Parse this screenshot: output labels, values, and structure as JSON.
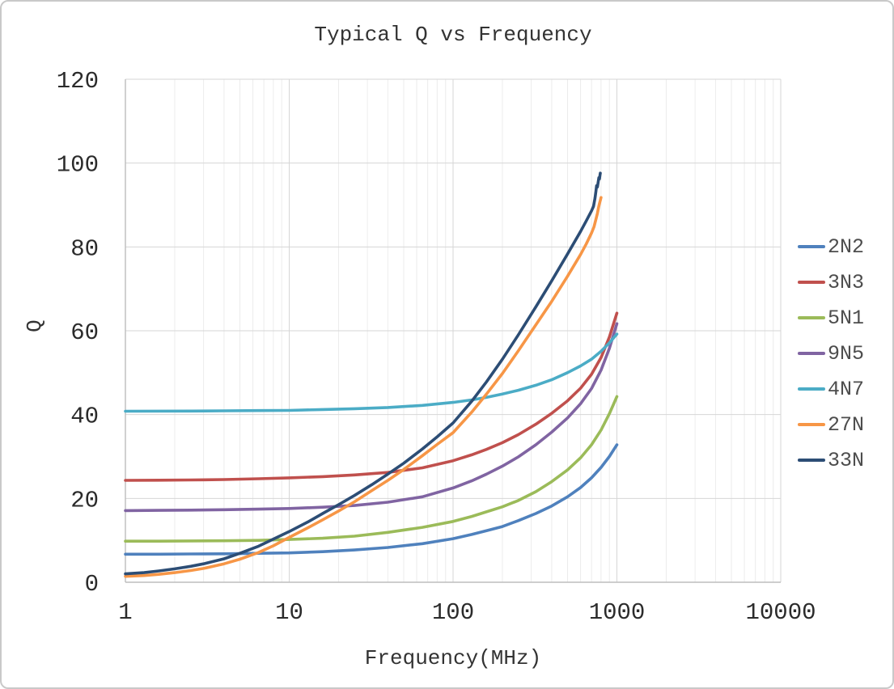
{
  "chart_data": {
    "type": "line",
    "title": "Typical Q vs Frequency",
    "xlabel": "Frequency(MHz)",
    "ylabel": "Q",
    "x_axis": {
      "scale": "log",
      "min": 1,
      "max": 10000,
      "ticks": [
        "1",
        "10",
        "100",
        "1000",
        "10000"
      ]
    },
    "y_axis": {
      "min": 0,
      "max": 120,
      "step": 20,
      "ticks": [
        "0",
        "20",
        "40",
        "60",
        "80",
        "100",
        "120"
      ]
    },
    "grid": {
      "major_color": "#d6d6d6",
      "minor_color": "#ececec",
      "axis_color": "#bdbdbd",
      "background": "#ffffff"
    },
    "legend_position": "right",
    "series": [
      {
        "name": "2N2",
        "color": "#4F81BD",
        "points": [
          [
            1,
            6.7
          ],
          [
            1.6,
            6.7
          ],
          [
            2.5,
            6.75
          ],
          [
            4,
            6.8
          ],
          [
            6.5,
            6.9
          ],
          [
            10,
            7.0
          ],
          [
            16,
            7.3
          ],
          [
            25,
            7.7
          ],
          [
            40,
            8.3
          ],
          [
            65,
            9.2
          ],
          [
            100,
            10.4
          ],
          [
            130,
            11.4
          ],
          [
            160,
            12.3
          ],
          [
            200,
            13.3
          ],
          [
            250,
            14.7
          ],
          [
            320,
            16.4
          ],
          [
            400,
            18.2
          ],
          [
            500,
            20.4
          ],
          [
            600,
            22.6
          ],
          [
            700,
            24.9
          ],
          [
            800,
            27.4
          ],
          [
            900,
            30.0
          ],
          [
            1000,
            32.8
          ]
        ]
      },
      {
        "name": "3N3",
        "color": "#C0504D",
        "points": [
          [
            1,
            24.3
          ],
          [
            1.6,
            24.35
          ],
          [
            2.5,
            24.4
          ],
          [
            4,
            24.5
          ],
          [
            6.5,
            24.7
          ],
          [
            10,
            24.9
          ],
          [
            16,
            25.2
          ],
          [
            25,
            25.6
          ],
          [
            40,
            26.2
          ],
          [
            65,
            27.3
          ],
          [
            100,
            29.0
          ],
          [
            130,
            30.4
          ],
          [
            160,
            31.7
          ],
          [
            200,
            33.3
          ],
          [
            250,
            35.2
          ],
          [
            320,
            37.7
          ],
          [
            400,
            40.3
          ],
          [
            500,
            43.3
          ],
          [
            600,
            46.3
          ],
          [
            700,
            49.6
          ],
          [
            800,
            53.6
          ],
          [
            900,
            58.5
          ],
          [
            1000,
            64.2
          ]
        ]
      },
      {
        "name": "5N1",
        "color": "#9BBB59",
        "points": [
          [
            1,
            9.8
          ],
          [
            1.6,
            9.8
          ],
          [
            2.5,
            9.85
          ],
          [
            4,
            9.9
          ],
          [
            6.5,
            10.0
          ],
          [
            10,
            10.2
          ],
          [
            16,
            10.5
          ],
          [
            25,
            11.0
          ],
          [
            40,
            11.9
          ],
          [
            65,
            13.1
          ],
          [
            100,
            14.5
          ],
          [
            130,
            15.7
          ],
          [
            160,
            16.8
          ],
          [
            200,
            18.0
          ],
          [
            250,
            19.5
          ],
          [
            320,
            21.6
          ],
          [
            400,
            24.0
          ],
          [
            500,
            26.8
          ],
          [
            600,
            29.7
          ],
          [
            700,
            32.8
          ],
          [
            800,
            36.3
          ],
          [
            900,
            40.2
          ],
          [
            1000,
            44.3
          ]
        ]
      },
      {
        "name": "9N5",
        "color": "#8064A2",
        "points": [
          [
            1,
            17.1
          ],
          [
            1.6,
            17.15
          ],
          [
            2.5,
            17.2
          ],
          [
            4,
            17.3
          ],
          [
            6.5,
            17.45
          ],
          [
            10,
            17.6
          ],
          [
            16,
            17.9
          ],
          [
            25,
            18.3
          ],
          [
            40,
            19.1
          ],
          [
            65,
            20.4
          ],
          [
            100,
            22.5
          ],
          [
            130,
            24.2
          ],
          [
            160,
            25.8
          ],
          [
            200,
            27.7
          ],
          [
            250,
            29.9
          ],
          [
            320,
            32.8
          ],
          [
            400,
            35.8
          ],
          [
            500,
            39.2
          ],
          [
            600,
            42.6
          ],
          [
            700,
            46.2
          ],
          [
            800,
            50.6
          ],
          [
            900,
            55.8
          ],
          [
            1000,
            61.7
          ]
        ]
      },
      {
        "name": "4N7",
        "color": "#4BACC6",
        "points": [
          [
            1,
            40.8
          ],
          [
            2.5,
            40.85
          ],
          [
            4,
            40.9
          ],
          [
            6.5,
            40.95
          ],
          [
            10,
            41.0
          ],
          [
            16,
            41.2
          ],
          [
            25,
            41.4
          ],
          [
            40,
            41.7
          ],
          [
            65,
            42.2
          ],
          [
            100,
            42.9
          ],
          [
            130,
            43.5
          ],
          [
            160,
            44.1
          ],
          [
            200,
            44.9
          ],
          [
            250,
            45.8
          ],
          [
            320,
            47.0
          ],
          [
            400,
            48.3
          ],
          [
            500,
            50.0
          ],
          [
            600,
            51.6
          ],
          [
            700,
            53.2
          ],
          [
            800,
            55.1
          ],
          [
            900,
            57.1
          ],
          [
            1000,
            59.2
          ]
        ]
      },
      {
        "name": "27N",
        "color": "#F79646",
        "points": [
          [
            1,
            1.4
          ],
          [
            1.3,
            1.6
          ],
          [
            1.6,
            1.9
          ],
          [
            2,
            2.3
          ],
          [
            2.5,
            2.8
          ],
          [
            3,
            3.3
          ],
          [
            4,
            4.4
          ],
          [
            5,
            5.5
          ],
          [
            6.5,
            7.1
          ],
          [
            8,
            8.7
          ],
          [
            10,
            10.7
          ],
          [
            13,
            13.0
          ],
          [
            16,
            14.9
          ],
          [
            20,
            17.0
          ],
          [
            25,
            19.2
          ],
          [
            32,
            21.9
          ],
          [
            40,
            24.3
          ],
          [
            50,
            26.9
          ],
          [
            65,
            30.2
          ],
          [
            80,
            32.9
          ],
          [
            100,
            35.7
          ],
          [
            130,
            40.6
          ],
          [
            160,
            44.9
          ],
          [
            200,
            49.8
          ],
          [
            250,
            55.2
          ],
          [
            320,
            61.4
          ],
          [
            400,
            67.0
          ],
          [
            500,
            73.0
          ],
          [
            600,
            78.2
          ],
          [
            650,
            80.7
          ],
          [
            700,
            83.3
          ],
          [
            725,
            84.8
          ],
          [
            745,
            86.6
          ],
          [
            760,
            88.0
          ],
          [
            772,
            89.3
          ],
          [
            782,
            90.3
          ],
          [
            792,
            91.1
          ],
          [
            800,
            91.8
          ]
        ]
      },
      {
        "name": "33N",
        "color": "#2C4D75",
        "points": [
          [
            1,
            2.0
          ],
          [
            1.3,
            2.3
          ],
          [
            1.6,
            2.7
          ],
          [
            2,
            3.2
          ],
          [
            2.5,
            3.8
          ],
          [
            3,
            4.4
          ],
          [
            4,
            5.6
          ],
          [
            5,
            6.9
          ],
          [
            6.5,
            8.6
          ],
          [
            8,
            10.3
          ],
          [
            10,
            12.1
          ],
          [
            13,
            14.4
          ],
          [
            16,
            16.4
          ],
          [
            20,
            18.5
          ],
          [
            25,
            20.7
          ],
          [
            32,
            23.3
          ],
          [
            40,
            25.8
          ],
          [
            50,
            28.4
          ],
          [
            65,
            31.8
          ],
          [
            80,
            34.7
          ],
          [
            100,
            38.0
          ],
          [
            130,
            43.2
          ],
          [
            160,
            47.8
          ],
          [
            200,
            53.2
          ],
          [
            250,
            59.0
          ],
          [
            320,
            65.7
          ],
          [
            400,
            71.9
          ],
          [
            500,
            78.3
          ],
          [
            600,
            83.7
          ],
          [
            650,
            86.2
          ],
          [
            700,
            88.6
          ],
          [
            720,
            89.7
          ],
          [
            735,
            91.6
          ],
          [
            745,
            93.3
          ],
          [
            752,
            94.6
          ],
          [
            760,
            94.3
          ],
          [
            768,
            95.4
          ],
          [
            776,
            96.5
          ],
          [
            782,
            96.2
          ],
          [
            788,
            97.0
          ],
          [
            792,
            97.6
          ]
        ]
      }
    ]
  }
}
